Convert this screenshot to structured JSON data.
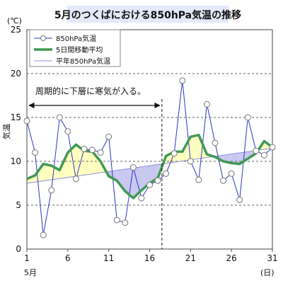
{
  "chart_data": {
    "type": "line",
    "title": "5月のつくばにおける850hPa気温の推移",
    "ylabel": "気温",
    "yunit": "(℃)",
    "xunit": "(日)",
    "month_label": "5月",
    "ylim": [
      0,
      25
    ],
    "yticks": [
      0,
      5,
      10,
      15,
      20,
      25
    ],
    "xlim": [
      1,
      31
    ],
    "xticks": [
      1,
      6,
      11,
      16,
      21,
      26,
      31
    ],
    "grid": true,
    "legend_position": "top-left",
    "series": [
      {
        "name": "850hPa気温",
        "color": "#2a36c4",
        "x": [
          1,
          2,
          3,
          4,
          5,
          6,
          7,
          8,
          9,
          10,
          11,
          12,
          13,
          14,
          15,
          16,
          17,
          18,
          19,
          20,
          21,
          22,
          23,
          24,
          25,
          26,
          27,
          28,
          29,
          30,
          31
        ],
        "values": [
          14.6,
          11.0,
          1.6,
          6.7,
          15.0,
          13.4,
          8.0,
          11.4,
          11.3,
          11.0,
          12.8,
          3.3,
          3.0,
          9.3,
          5.8,
          7.3,
          7.8,
          8.6,
          10.9,
          19.2,
          10.0,
          7.9,
          16.5,
          12.1,
          7.8,
          8.6,
          5.6,
          15.0,
          11.2,
          10.7,
          11.6
        ]
      },
      {
        "name": "5日間移動平均",
        "color": "#3f9a52",
        "x": [
          1,
          2,
          3,
          4,
          5,
          6,
          7,
          8,
          9,
          10,
          11,
          12,
          13,
          14,
          15,
          16,
          17,
          18,
          19,
          20,
          21,
          22,
          23,
          24,
          25,
          26,
          27,
          28,
          29,
          30,
          31
        ],
        "values": [
          8.0,
          8.4,
          9.7,
          9.5,
          9.0,
          11.0,
          11.9,
          11.2,
          11.1,
          10.0,
          8.3,
          7.8,
          6.6,
          5.8,
          6.7,
          7.5,
          8.1,
          10.6,
          11.1,
          11.1,
          12.8,
          13.0,
          10.8,
          10.5,
          10.0,
          9.8,
          9.7,
          10.3,
          10.9,
          12.3,
          11.6
        ]
      },
      {
        "name": "平年850hPa気温",
        "color": "#8c8cd8",
        "x": [
          1,
          31
        ],
        "values": [
          7.5,
          11.5
        ]
      }
    ],
    "fill_above_normal_color": "#ffffc0",
    "fill_below_normal_color": "#c8c8f0",
    "annotation": {
      "text": "周期的に下層に寒気が入る。",
      "from_day": 1,
      "to_day": 17.5,
      "divider_day": 17.5
    }
  }
}
